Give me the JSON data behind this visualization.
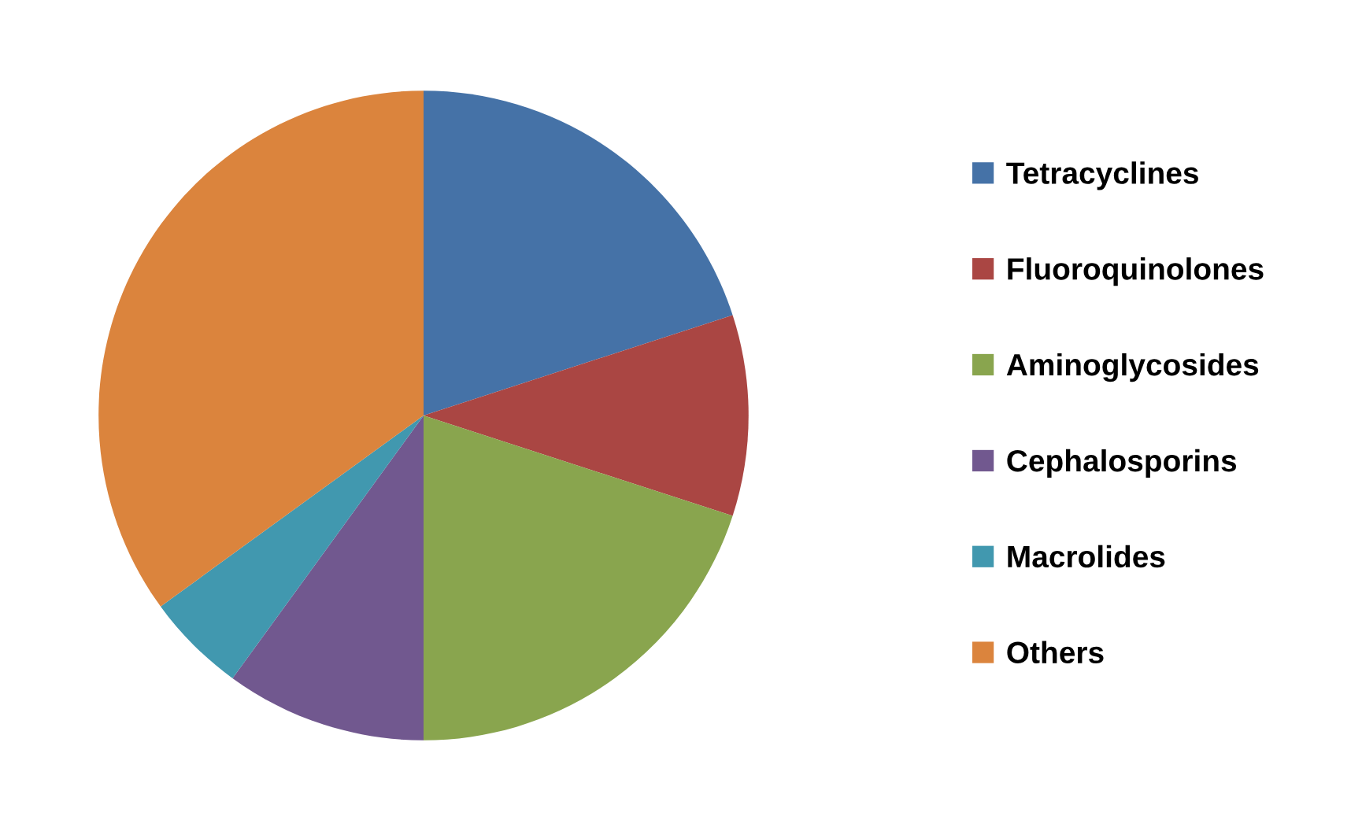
{
  "chart_data": {
    "type": "pie",
    "categories": [
      "Tetracyclines",
      "Fluoroquinolones",
      "Aminoglycosides",
      "Cephalosporins",
      "Macrolides",
      "Others"
    ],
    "values": [
      20,
      10,
      20,
      10,
      5,
      35
    ],
    "colors": [
      "#4572a7",
      "#aa4643",
      "#89a54e",
      "#71588f",
      "#4198af",
      "#db843d"
    ],
    "legend": "right"
  }
}
